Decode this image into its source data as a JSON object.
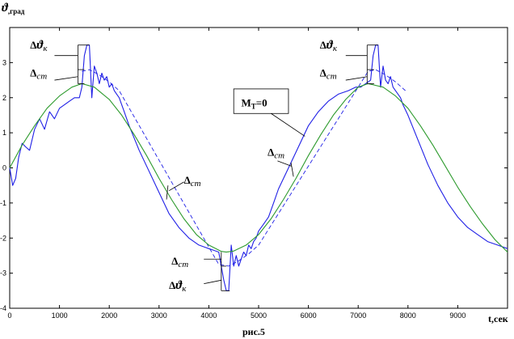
{
  "caption": "рис.5",
  "chart_data": {
    "type": "line",
    "title": "",
    "ylabel": "ϑ,град",
    "xlabel": "t,сек",
    "xlim": [
      0,
      10000
    ],
    "ylim": [
      -4,
      4
    ],
    "xticks": [
      0,
      1000,
      2000,
      3000,
      4000,
      5000,
      6000,
      7000,
      8000,
      9000
    ],
    "yticks": [
      -4,
      -3,
      -2,
      -1,
      0,
      1,
      2,
      3
    ],
    "grid": false,
    "series": [
      {
        "color": "#1f1fe6",
        "style": "solid",
        "x": [
          0,
          60,
          120,
          180,
          250,
          320,
          400,
          500,
          600,
          700,
          800,
          900,
          1000,
          1100,
          1200,
          1300,
          1400,
          1450,
          1500,
          1550,
          1600,
          1650,
          1700,
          1750,
          1800,
          1850,
          1900,
          1950,
          2000,
          2050,
          2100,
          2150,
          2200,
          2300,
          2400,
          2600,
          2800,
          3000,
          3200,
          3400,
          3600,
          3800,
          4000,
          4100,
          4200,
          4300,
          4350,
          4400,
          4450,
          4500,
          4550,
          4600,
          4650,
          4700,
          4750,
          4800,
          4850,
          4900,
          4950,
          5000,
          5100,
          5200,
          5300,
          5400,
          5600,
          5800,
          6000,
          6200,
          6400,
          6600,
          6800,
          6950,
          7050,
          7150,
          7250,
          7300,
          7350,
          7400,
          7450,
          7500,
          7550,
          7600,
          7650,
          7700,
          7750,
          7800,
          7850,
          7900,
          8000,
          8200,
          8400,
          8600,
          8800,
          9000,
          9200,
          9400,
          9600,
          9800,
          10000
        ],
        "y": [
          0,
          -0.5,
          -0.3,
          0.3,
          0.7,
          0.6,
          0.5,
          1.1,
          1.4,
          1.1,
          1.6,
          1.4,
          1.7,
          1.8,
          1.9,
          2.0,
          2.0,
          2.3,
          3.2,
          3.5,
          3.5,
          2.0,
          2.9,
          2.7,
          2.4,
          2.7,
          2.5,
          2.6,
          2.3,
          2.4,
          2.2,
          2.1,
          2.0,
          1.6,
          1.2,
          0.5,
          -0.1,
          -0.7,
          -1.3,
          -1.7,
          -2.0,
          -2.2,
          -2.3,
          -2.35,
          -2.4,
          -3.2,
          -3.5,
          -3.5,
          -2.2,
          -2.8,
          -2.5,
          -2.8,
          -2.6,
          -2.4,
          -2.5,
          -2.2,
          -2.3,
          -2.1,
          -2.0,
          -1.8,
          -1.6,
          -1.4,
          -1.0,
          -0.6,
          0,
          0.6,
          1.2,
          1.6,
          1.9,
          2.1,
          2.2,
          2.3,
          2.3,
          2.4,
          2.5,
          3.2,
          3.5,
          3.5,
          2.3,
          2.9,
          2.5,
          2.4,
          2.6,
          2.3,
          2.2,
          2.1,
          2.0,
          1.8,
          1.5,
          0.8,
          0.1,
          -0.5,
          -1.0,
          -1.4,
          -1.7,
          -1.9,
          -2.1,
          -2.2,
          -2.3
        ]
      },
      {
        "color": "#1f1fe6",
        "style": "dashed",
        "x": [
          1450,
          1600,
          1800,
          2000,
          2200,
          4200,
          4400,
          4600,
          4800,
          5000,
          7200,
          7350,
          7550,
          7750,
          7950
        ],
        "y": [
          2.75,
          2.8,
          2.65,
          2.45,
          2.2,
          -2.75,
          -2.8,
          -2.65,
          -2.45,
          -2.2,
          2.75,
          2.8,
          2.65,
          2.45,
          2.2
        ]
      },
      {
        "color": "#2e9b2e",
        "style": "solid",
        "x": [
          0,
          250,
          500,
          750,
          1000,
          1250,
          1450,
          1700,
          2000,
          2250,
          2500,
          2750,
          3000,
          3250,
          3500,
          3750,
          4000,
          4250,
          4350,
          4500,
          4750,
          5000,
          5250,
          5500,
          5750,
          6000,
          6250,
          6500,
          6750,
          7000,
          7200,
          7500,
          7750,
          8000,
          8250,
          8500,
          8750,
          9000,
          9250,
          9500,
          9750,
          10000
        ],
        "y": [
          0,
          0.65,
          1.2,
          1.7,
          2.05,
          2.3,
          2.4,
          2.3,
          1.95,
          1.5,
          0.95,
          0.35,
          -0.3,
          -0.9,
          -1.45,
          -1.9,
          -2.2,
          -2.38,
          -2.4,
          -2.37,
          -2.2,
          -1.9,
          -1.45,
          -0.9,
          -0.3,
          0.35,
          0.95,
          1.5,
          1.95,
          2.3,
          2.4,
          2.3,
          2.05,
          1.7,
          1.2,
          0.65,
          0.05,
          -0.55,
          -1.1,
          -1.6,
          -2.05,
          -2.4
        ]
      }
    ],
    "annotations": [
      {
        "text": "Δϑ",
        "sub": "к",
        "x": 410,
        "y": 3.4
      },
      {
        "text": "Δ",
        "sub": "ст",
        "x": 410,
        "y": 2.6
      },
      {
        "text": "Δ",
        "sub": "ст",
        "x": 3500,
        "y": -0.45
      },
      {
        "text": "Δ",
        "sub": "ст",
        "x": 3250,
        "y": -2.75
      },
      {
        "text": "Δϑ",
        "sub": "к",
        "x": 3200,
        "y": -3.45
      },
      {
        "text": "Δϑ",
        "sub": "к",
        "x": 6230,
        "y": 3.4
      },
      {
        "text": "Δ",
        "sub": "ст",
        "x": 6230,
        "y": 2.6
      },
      {
        "text": "Δ",
        "sub": "ст",
        "x": 5180,
        "y": 0.35
      },
      {
        "text": "M",
        "sub": "T",
        "suffix": "=0",
        "x": 4650,
        "y": 1.75
      }
    ]
  }
}
